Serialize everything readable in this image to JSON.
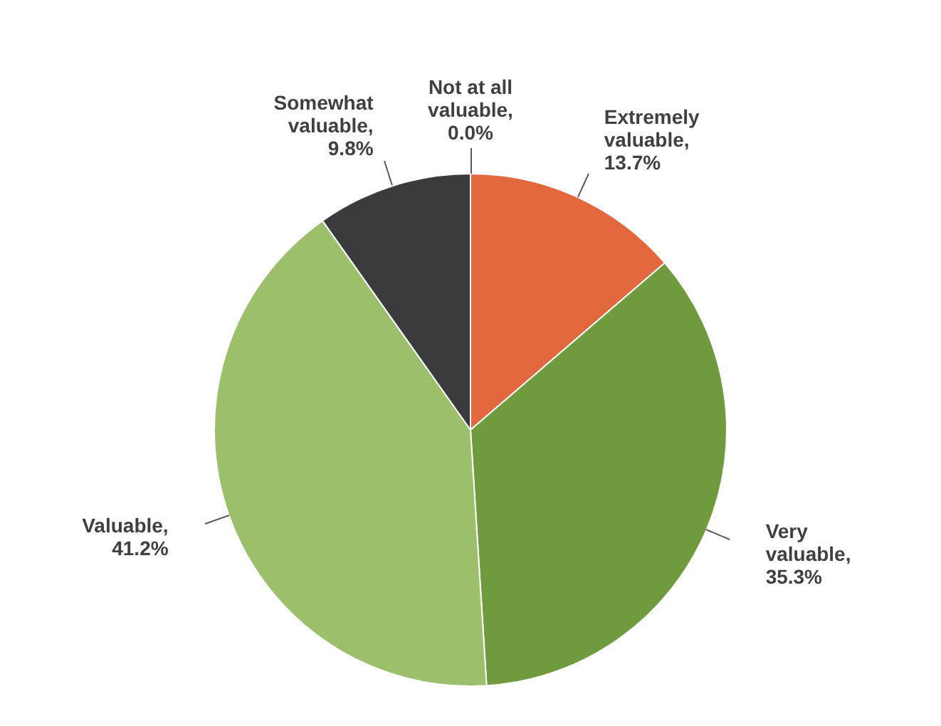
{
  "chart_data": {
    "type": "pie",
    "categories": [
      "Extremely valuable",
      "Very valuable",
      "Valuable",
      "Somewhat valuable",
      "Not at all valuable"
    ],
    "values": [
      13.7,
      35.3,
      41.2,
      9.8,
      0.0
    ],
    "colors": [
      "#e2673d",
      "#6f9a3e",
      "#9bbf6a",
      "#3b3a3d",
      "#7f7f7f"
    ],
    "value_labels": [
      ", 13.7%",
      ", 35.3%",
      ", 41.2%",
      ", 9.8%",
      ", 0.0%"
    ],
    "legend": false
  }
}
